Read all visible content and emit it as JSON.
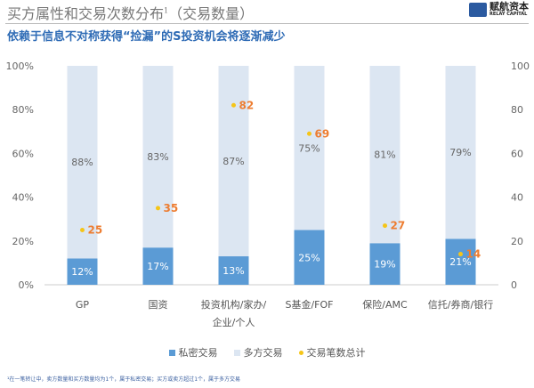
{
  "header": {
    "title": "买方属性和交易次数分布",
    "title_sup": "1",
    "title_suffix": "（交易数量）",
    "subtitle": "依赖于信息不对称获得“捡漏”的S投资机会将逐渐减少",
    "logo_cn": "赋航资本",
    "logo_en": "RELAY CAPITAL"
  },
  "colors": {
    "private": "#5b9bd5",
    "multi": "#dce6f2",
    "total": "#f5c518",
    "total_label": "#ed7d31"
  },
  "chart_data": {
    "type": "bar",
    "stacked": true,
    "categories": [
      "GP",
      "国资",
      "投资机构/家办/企业/个人",
      "S基金/FOF",
      "保险/AMC",
      "信托/券商/银行"
    ],
    "category_lines": [
      [
        "GP"
      ],
      [
        "国资"
      ],
      [
        "投资机构/家办/",
        "企业/个人"
      ],
      [
        "S基金/FOF"
      ],
      [
        "保险/AMC"
      ],
      [
        "信托/券商/银行"
      ]
    ],
    "series": [
      {
        "name": "私密交易",
        "values": [
          12,
          17,
          13,
          25,
          19,
          21
        ],
        "labels": [
          "12%",
          "17%",
          "13%",
          "25%",
          "19%",
          "21%"
        ],
        "axis": "left"
      },
      {
        "name": "多方交易",
        "values": [
          88,
          83,
          87,
          75,
          81,
          79
        ],
        "labels": [
          "88%",
          "83%",
          "87%",
          "75%",
          "81%",
          "79%"
        ],
        "axis": "left"
      },
      {
        "name": "交易笔数总计",
        "type": "scatter",
        "values": [
          25,
          35,
          82,
          69,
          27,
          14
        ],
        "axis": "right"
      }
    ],
    "yticks_left": [
      "0%",
      "20%",
      "40%",
      "60%",
      "80%",
      "100%"
    ],
    "yticks_right": [
      "0",
      "20",
      "40",
      "60",
      "80",
      "100"
    ],
    "ylim": [
      0,
      100
    ],
    "ylim_right": [
      0,
      100
    ],
    "legend": "bottom"
  },
  "footnote": "¹在一笔转让中，卖方数量和买方数量均为1个，属于私密交易；买方或卖方超过1个，属于多方交易"
}
